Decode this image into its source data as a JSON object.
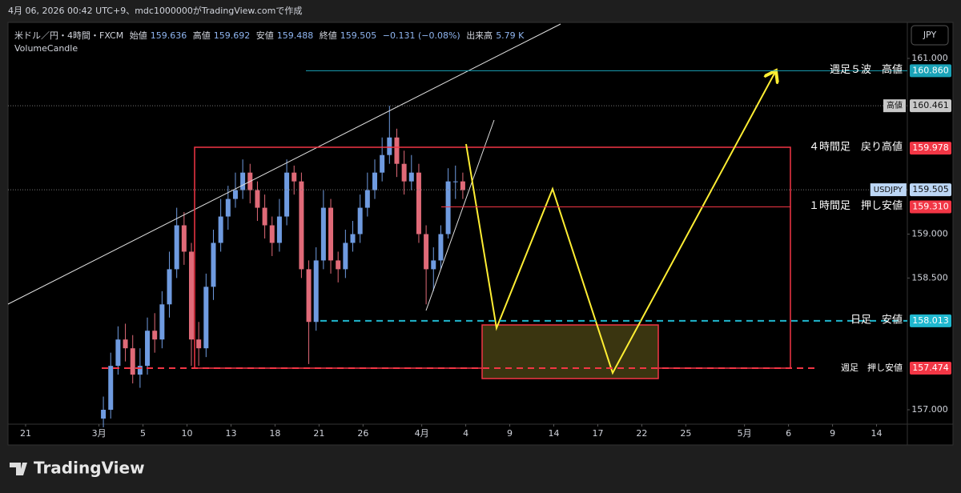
{
  "header": {
    "caption": "4月 06, 2026 00:42 UTC+9、mdc1000000がTradingView.comで作成",
    "symbol": "米ドル／円・4時間・FXCM",
    "open_label": "始値",
    "open": "159.636",
    "high_label": "高値",
    "high": "159.692",
    "low_label": "安値",
    "low": "159.488",
    "close_label": "終値",
    "close": "159.505",
    "change": "−0.131 (−0.08%)",
    "volume_label": "出来高",
    "volume": "5.79 K",
    "indicator": "VolumeCandle",
    "currency": "JPY",
    "logo": "TradingView"
  },
  "chart_data": {
    "type": "candlestick",
    "up_color": "#6f9be0",
    "down_color": "#e06a78",
    "x": [
      0.3,
      0.8,
      1.3,
      1.8,
      2.3,
      2.8,
      3.3,
      3.8,
      4.3,
      4.8,
      5.3,
      5.8,
      6.3,
      6.8,
      7.3,
      7.8,
      8.3,
      8.8,
      9.3,
      9.8,
      10.3,
      10.8,
      11.3,
      11.8,
      12.3,
      12.8,
      13.3,
      13.8,
      14.3,
      14.8,
      15.3,
      15.8,
      16.3,
      16.8,
      17.3,
      17.8,
      18.3,
      18.8,
      19.3,
      19.8,
      20.3,
      20.8,
      21.3,
      21.8,
      22.3,
      22.8,
      23.3,
      23.8,
      24.3,
      24.8
    ],
    "open": [
      156.9,
      157.0,
      157.5,
      157.8,
      157.7,
      157.4,
      157.5,
      157.9,
      157.8,
      158.2,
      158.6,
      159.1,
      158.8,
      157.8,
      157.7,
      158.4,
      158.9,
      159.2,
      159.4,
      159.5,
      159.7,
      159.5,
      159.3,
      159.1,
      158.9,
      159.2,
      159.7,
      159.6,
      158.6,
      158.0,
      158.7,
      159.3,
      158.7,
      158.6,
      158.9,
      159.0,
      159.3,
      159.5,
      159.7,
      159.9,
      160.1,
      159.8,
      159.6,
      159.7,
      159.0,
      158.6,
      158.7,
      159.0,
      159.6,
      159.6
    ],
    "high": [
      157.15,
      157.65,
      157.95,
      157.98,
      157.85,
      157.7,
      158.05,
      158.1,
      158.35,
      158.8,
      159.3,
      159.25,
      158.9,
      158.0,
      158.55,
      159.05,
      159.4,
      159.55,
      159.7,
      159.85,
      159.8,
      159.6,
      159.45,
      159.2,
      159.4,
      159.85,
      159.78,
      159.7,
      158.7,
      158.85,
      159.5,
      159.4,
      158.8,
      159.05,
      159.15,
      159.45,
      159.7,
      159.85,
      160.1,
      160.46,
      160.2,
      159.95,
      159.9,
      159.8,
      159.1,
      158.85,
      159.1,
      159.75,
      159.78,
      159.7
    ],
    "low": [
      156.8,
      156.9,
      157.4,
      157.55,
      157.3,
      157.25,
      157.4,
      157.65,
      157.7,
      158.05,
      158.5,
      158.65,
      157.5,
      157.5,
      157.6,
      158.25,
      158.8,
      159.05,
      159.3,
      159.4,
      159.35,
      159.15,
      158.95,
      158.75,
      158.8,
      159.1,
      159.45,
      158.5,
      157.52,
      157.9,
      158.6,
      158.55,
      158.45,
      158.5,
      158.8,
      158.9,
      159.2,
      159.4,
      159.6,
      159.8,
      159.65,
      159.45,
      159.5,
      158.9,
      158.2,
      158.35,
      158.6,
      158.95,
      159.4,
      159.4
    ],
    "close": [
      157.0,
      157.5,
      157.8,
      157.7,
      157.4,
      157.5,
      157.9,
      157.8,
      158.2,
      158.6,
      159.1,
      158.8,
      157.8,
      157.7,
      158.4,
      158.9,
      159.2,
      159.4,
      159.5,
      159.7,
      159.5,
      159.3,
      159.1,
      158.9,
      159.2,
      159.7,
      159.6,
      158.6,
      158.0,
      158.7,
      159.3,
      158.7,
      158.6,
      158.9,
      159.0,
      159.3,
      159.5,
      159.7,
      159.9,
      160.1,
      159.8,
      159.6,
      159.7,
      159.0,
      158.6,
      158.7,
      159.0,
      159.6,
      159.6,
      159.5
    ],
    "xlim": [
      -6.2,
      55.1
    ],
    "xticks": [
      {
        "value": -5,
        "label": "21"
      },
      {
        "value": 0,
        "label": "3月"
      },
      {
        "value": 3,
        "label": "5"
      },
      {
        "value": 6,
        "label": "10"
      },
      {
        "value": 9,
        "label": "13"
      },
      {
        "value": 12,
        "label": "18"
      },
      {
        "value": 15,
        "label": "21"
      },
      {
        "value": 18,
        "label": "26"
      },
      {
        "value": 22,
        "label": "4月"
      },
      {
        "value": 25,
        "label": "4"
      },
      {
        "value": 28,
        "label": "9"
      },
      {
        "value": 31,
        "label": "14"
      },
      {
        "value": 34,
        "label": "17"
      },
      {
        "value": 37,
        "label": "22"
      },
      {
        "value": 40,
        "label": "25"
      },
      {
        "value": 44,
        "label": "5月"
      },
      {
        "value": 47,
        "label": "6"
      },
      {
        "value": 50,
        "label": "9"
      },
      {
        "value": 53,
        "label": "14"
      }
    ],
    "ylim": [
      156.836,
      161.41
    ],
    "yticks": [
      {
        "value": 161,
        "label": "161.000"
      },
      {
        "value": 159,
        "label": "159.000"
      },
      {
        "value": 158.5,
        "label": "158.500"
      },
      {
        "value": 157,
        "label": "157.000"
      }
    ],
    "levels": [
      {
        "name": "週足５波　高値",
        "value": 160.86,
        "label": "160.860",
        "color": "#1aa3b8",
        "style": "solid"
      },
      {
        "name": "高値",
        "value": 160.461,
        "label": "160.461",
        "color": "#c8c8c8",
        "style": "dotted"
      },
      {
        "name": "４時間足　戻り高値",
        "value": 159.978,
        "label": "159.978",
        "color": "#f23645",
        "style": "none"
      },
      {
        "name": "USDJPY",
        "value": 159.505,
        "label": "159.505",
        "color": "#bcd6f5",
        "style": "dotted"
      },
      {
        "name": "１時間足　押し安値",
        "value": 159.31,
        "label": "159.310",
        "color": "#f23645",
        "style": "thin"
      },
      {
        "name": "日足　安値",
        "value": 158.013,
        "label": "158.013",
        "color": "#1fb8cf",
        "style": "dashed"
      },
      {
        "name": "週足　押し安値",
        "value": 157.474,
        "label": "157.474",
        "color": "#f23645",
        "style": "dashed"
      }
    ]
  }
}
